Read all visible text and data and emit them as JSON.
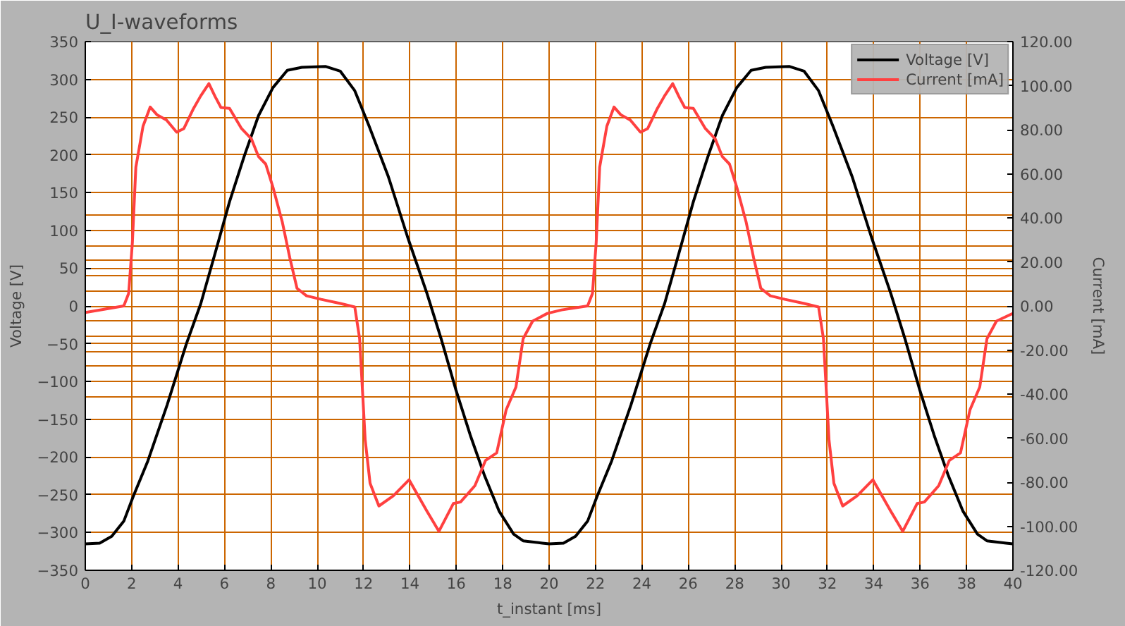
{
  "chart_data": {
    "type": "line",
    "title": "U_I-waveforms",
    "xlabel": "t_instant [ms]",
    "ylabel": "Voltage [V]",
    "y2label": "Current [mA]",
    "xlim": [
      0,
      40
    ],
    "xticks": [
      0,
      2,
      4,
      6,
      8,
      10,
      12,
      14,
      16,
      18,
      20,
      22,
      24,
      26,
      28,
      30,
      32,
      34,
      36,
      38,
      40
    ],
    "ylim": [
      -350,
      350
    ],
    "yticks": [
      -350,
      -300,
      -250,
      -200,
      -150,
      -100,
      -50,
      0,
      50,
      100,
      150,
      200,
      250,
      300,
      350
    ],
    "y2lim": [
      -120,
      120
    ],
    "y2ticks": [
      {
        "value": -120,
        "label": "-120.00"
      },
      {
        "value": -100,
        "label": "-100.00"
      },
      {
        "value": -80,
        "label": "-80.00"
      },
      {
        "value": -60,
        "label": "-60.00"
      },
      {
        "value": -40,
        "label": "-40.00"
      },
      {
        "value": -20,
        "label": "-20.00"
      },
      {
        "value": 0,
        "label": "0.00"
      },
      {
        "value": 20,
        "label": "20.00"
      },
      {
        "value": 40,
        "label": "40.00"
      },
      {
        "value": 60,
        "label": "60.00"
      },
      {
        "value": 80,
        "label": "80.00"
      },
      {
        "value": 100,
        "label": "100.00"
      },
      {
        "value": 120,
        "label": "120.00"
      }
    ],
    "grid": true,
    "legend": "top right",
    "line_style": "solid",
    "series": [
      {
        "name": "Voltage [V]",
        "color": "#000000",
        "x": [
          0,
          0.62,
          1.14,
          1.66,
          2.07,
          2.7,
          3.53,
          4.36,
          4.98,
          5.6,
          6.22,
          6.85,
          7.47,
          8.09,
          8.71,
          9.34,
          10.37,
          10.99,
          11.62,
          12.24,
          13.07,
          13.9,
          14.73,
          15.35,
          15.98,
          16.6,
          17.22,
          17.85,
          18.47,
          18.88,
          19.71,
          20,
          20.62,
          21.14,
          21.66,
          22.07,
          22.7,
          23.53,
          24.36,
          24.98,
          25.6,
          26.22,
          26.85,
          27.47,
          28.09,
          28.71,
          29.34,
          30.37,
          30.99,
          31.62,
          32.24,
          33.07,
          33.9,
          34.73,
          35.35,
          35.98,
          36.6,
          37.22,
          37.85,
          38.47,
          38.88,
          39.71,
          40
        ],
        "values": [
          -315,
          -314,
          -305,
          -285,
          -252,
          -205,
          -131,
          -50,
          3,
          70,
          138,
          198,
          252,
          289,
          312,
          316,
          317,
          311,
          285,
          238,
          171,
          91,
          17,
          -44,
          -111,
          -171,
          -225,
          -272,
          -302,
          -311,
          -314,
          -315,
          -314,
          -305,
          -285,
          -252,
          -205,
          -131,
          -50,
          3,
          70,
          138,
          198,
          252,
          289,
          312,
          316,
          317,
          311,
          285,
          238,
          171,
          91,
          17,
          -44,
          -111,
          -171,
          -225,
          -272,
          -302,
          -311,
          -314,
          -315
        ]
      },
      {
        "name": "Current [mA]",
        "color": "#ff4040",
        "axis": "y2",
        "x": [
          0,
          1.66,
          1.87,
          2.03,
          2.18,
          2.49,
          2.8,
          3.1,
          3.5,
          3.94,
          4.25,
          4.67,
          4.98,
          5.33,
          5.6,
          5.85,
          6.22,
          6.74,
          7.16,
          7.47,
          7.78,
          8.09,
          8.5,
          8.82,
          9.13,
          9.54,
          10.17,
          11.0,
          11.62,
          11.83,
          12.07,
          12.28,
          12.66,
          13.28,
          13.96,
          14.73,
          15.25,
          15.87,
          16.18,
          16.8,
          17.26,
          17.74,
          18.15,
          18.57,
          18.88,
          19.29,
          19.92,
          20.54,
          21.66,
          21.87,
          22.03,
          22.18,
          22.49,
          22.8,
          23.1,
          23.5,
          23.94,
          24.25,
          24.67,
          24.98,
          25.33,
          25.6,
          25.85,
          26.22,
          26.74,
          27.16,
          27.47,
          27.78,
          28.09,
          28.5,
          28.82,
          29.13,
          29.54,
          30.17,
          31.0,
          31.62,
          31.83,
          32.07,
          32.28,
          32.66,
          33.28,
          33.96,
          34.73,
          35.25,
          35.87,
          36.18,
          36.8,
          37.26,
          37.74,
          38.15,
          38.57,
          38.88,
          39.29,
          40
        ],
        "values": [
          -3.0,
          0,
          5.7,
          28.7,
          63,
          81.6,
          90.3,
          86.7,
          84.4,
          78.9,
          80.5,
          89.7,
          95.4,
          100.9,
          95,
          90.1,
          89.7,
          80.5,
          75.9,
          67.8,
          64.4,
          54,
          37.9,
          21.8,
          8,
          4.6,
          3,
          1.1,
          -0.5,
          -14.9,
          -60.9,
          -80.5,
          -90.8,
          -86.2,
          -78.9,
          -93.1,
          -102.3,
          -89.7,
          -89,
          -81.6,
          -70.1,
          -66.7,
          -47.1,
          -36.8,
          -14.9,
          -6.9,
          -3.4,
          -1.8,
          0,
          5.7,
          28.7,
          63,
          81.6,
          90.3,
          86.7,
          84.4,
          78.9,
          80.5,
          89.7,
          95.4,
          100.9,
          95,
          90.1,
          89.7,
          80.5,
          75.9,
          67.8,
          64.4,
          54,
          37.9,
          21.8,
          8,
          4.6,
          3,
          1.1,
          -0.5,
          -14.9,
          -60.9,
          -80.5,
          -90.8,
          -86.2,
          -78.9,
          -93.1,
          -102.3,
          -89.7,
          -89,
          -81.6,
          -70.1,
          -66.7,
          -47.1,
          -36.8,
          -14.9,
          -6.9,
          -3.4
        ]
      }
    ]
  }
}
